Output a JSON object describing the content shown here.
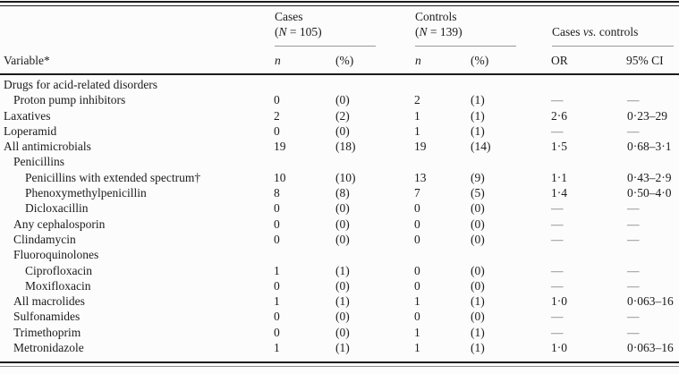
{
  "page": {
    "background": "#fcfcfc",
    "text_color": "#1b1b1b",
    "rule_color": "#1b1b1b",
    "group_rule_color": "#999999",
    "dash_glyph": "—"
  },
  "header": {
    "variable_label": "Variable*",
    "groups": {
      "cases": {
        "title": "Cases",
        "size_open": "(",
        "size_sym": "N",
        "size_rest": " = 105)"
      },
      "controls": {
        "title": "Controls",
        "size_open": "(",
        "size_sym": "N",
        "size_rest": " = 139)"
      },
      "vs": {
        "pre": "Cases ",
        "italic": "vs.",
        "post": " controls"
      }
    },
    "subheaders": {
      "cases_n": "n",
      "cases_pct": "(%)",
      "controls_n": "n",
      "controls_pct": "(%)",
      "or": "OR",
      "ci": "95% CI"
    }
  },
  "rows": [
    {
      "label": "Drugs for acid-related disorders",
      "indent": 0,
      "cells": [
        "",
        "",
        "",
        "",
        "",
        ""
      ]
    },
    {
      "label": "Proton pump inhibitors",
      "indent": 1,
      "cells": [
        "0",
        "(0)",
        "2",
        "(1)",
        "—",
        "—"
      ]
    },
    {
      "label": "Laxatives",
      "indent": 0,
      "cells": [
        "2",
        "(2)",
        "1",
        "(1)",
        "2·6",
        "0·23–29"
      ]
    },
    {
      "label": "Loperamid",
      "indent": 0,
      "cells": [
        "0",
        "(0)",
        "1",
        "(1)",
        "—",
        "—"
      ]
    },
    {
      "label": "All antimicrobials",
      "indent": 0,
      "cells": [
        "19",
        "(18)",
        "19",
        "(14)",
        "1·5",
        "0·68–3·1"
      ]
    },
    {
      "label": "Penicillins",
      "indent": 1,
      "cells": [
        "",
        "",
        "",
        "",
        "",
        ""
      ]
    },
    {
      "label": "Penicillins with extended spectrum†",
      "indent": 2,
      "cells": [
        "10",
        "(10)",
        "13",
        "(9)",
        "1·1",
        "0·43–2·9"
      ]
    },
    {
      "label": "Phenoxymethylpenicillin",
      "indent": 2,
      "cells": [
        "8",
        "(8)",
        "7",
        "(5)",
        "1·4",
        "0·50–4·0"
      ]
    },
    {
      "label": "Dicloxacillin",
      "indent": 2,
      "cells": [
        "0",
        "(0)",
        "0",
        "(0)",
        "—",
        "—"
      ]
    },
    {
      "label": "Any cephalosporin",
      "indent": 1,
      "cells": [
        "0",
        "(0)",
        "0",
        "(0)",
        "—",
        "—"
      ]
    },
    {
      "label": "Clindamycin",
      "indent": 1,
      "cells": [
        "0",
        "(0)",
        "0",
        "(0)",
        "—",
        "—"
      ]
    },
    {
      "label": "Fluoroquinolones",
      "indent": 1,
      "cells": [
        "",
        "",
        "",
        "",
        "",
        ""
      ]
    },
    {
      "label": "Ciprofloxacin",
      "indent": 2,
      "cells": [
        "1",
        "(1)",
        "0",
        "(0)",
        "—",
        "—"
      ]
    },
    {
      "label": "Moxifloxacin",
      "indent": 2,
      "cells": [
        "0",
        "(0)",
        "0",
        "(0)",
        "—",
        "—"
      ]
    },
    {
      "label": "All macrolides",
      "indent": 1,
      "cells": [
        "1",
        "(1)",
        "1",
        "(1)",
        "1·0",
        "0·063–16"
      ]
    },
    {
      "label": "Sulfonamides",
      "indent": 1,
      "cells": [
        "0",
        "(0)",
        "0",
        "(0)",
        "—",
        "—"
      ]
    },
    {
      "label": "Trimethoprim",
      "indent": 1,
      "cells": [
        "0",
        "(0)",
        "1",
        "(1)",
        "—",
        "—"
      ]
    },
    {
      "label": "Metronidazole",
      "indent": 1,
      "cells": [
        "1",
        "(1)",
        "1",
        "(1)",
        "1·0",
        "0·063–16"
      ]
    }
  ]
}
